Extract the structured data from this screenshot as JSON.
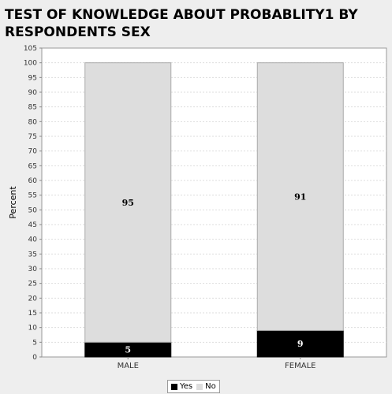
{
  "chart_data": {
    "type": "bar",
    "stacked": true,
    "title": "TEST OF KNOWLEDGE ABOUT PROBABLITY1 BY RESPONDENTS SEX",
    "xlabel": "",
    "ylabel": "Percent",
    "categories": [
      "MALE",
      "FEMALE"
    ],
    "series": [
      {
        "name": "Yes",
        "values": [
          5,
          9
        ],
        "color": "#000000"
      },
      {
        "name": "No",
        "values": [
          95,
          91
        ],
        "color": "#dddddd"
      }
    ],
    "ylim": [
      0,
      105
    ],
    "yticks": [
      "0",
      "5",
      "10",
      "15",
      "20",
      "25",
      "30",
      "35",
      "40",
      "45",
      "50",
      "55",
      "60",
      "65",
      "70",
      "75",
      "80",
      "85",
      "90",
      "95",
      "100",
      "105"
    ],
    "grid": true,
    "legend_position": "bottom"
  }
}
